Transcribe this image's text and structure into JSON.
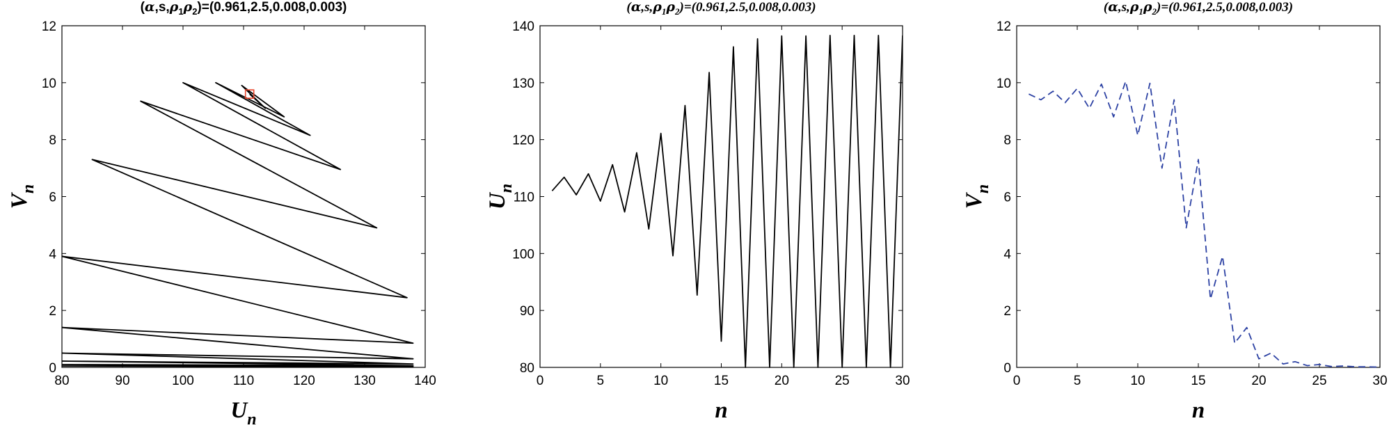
{
  "chart_data": [
    {
      "type": "line",
      "title": "(α,s,ρ1ρ2)=(0.961,2.5,0.008,0.003)",
      "title_parts": {
        "prefix": "(",
        "alpha": "α",
        "mid": ",s,",
        "rho": "ρ",
        "sub1": "1",
        "sub2": "2",
        "suffix": ")=(0.961,2.5,0.008,0.003)"
      },
      "xlabel": "U",
      "xlabel_sub": "n",
      "ylabel": "V",
      "ylabel_sub": "n",
      "xlim": [
        80,
        140
      ],
      "ylim": [
        0,
        12
      ],
      "xticks": [
        "80",
        "90",
        "100",
        "110",
        "120",
        "130",
        "140"
      ],
      "yticks": [
        "0",
        "2",
        "4",
        "6",
        "8",
        "10",
        "12"
      ],
      "grid": false,
      "series": [
        {
          "color": "#000000",
          "style": "solid",
          "points": [
            [
              111,
              9.6
            ],
            [
              113.6,
              9.1
            ],
            [
              109.7,
              9.9
            ],
            [
              116.7,
              8.8
            ],
            [
              105.4,
              10.0
            ],
            [
              121,
              8.15
            ],
            [
              100,
              10.0
            ],
            [
              126,
              6.95
            ],
            [
              93,
              9.35
            ],
            [
              132,
              4.9
            ],
            [
              85,
              7.3
            ],
            [
              137,
              2.45
            ],
            [
              80,
              3.9
            ],
            [
              138,
              0.85
            ],
            [
              80,
              1.4
            ],
            [
              138,
              0.3
            ],
            [
              80,
              0.5
            ],
            [
              138,
              0.12
            ],
            [
              80,
              0.22
            ],
            [
              138,
              0.06
            ],
            [
              80,
              0.1
            ],
            [
              138,
              0.03
            ],
            [
              80,
              0.05
            ],
            [
              138,
              0.01
            ]
          ]
        }
      ],
      "marker": {
        "x": 111,
        "y": 9.6,
        "shape": "square",
        "color": "#e8442a"
      }
    },
    {
      "type": "line",
      "title": "(α,s,ρ1ρ2)=(0.961,2.5,0.008,0.003)",
      "title_parts": {
        "prefix": "(",
        "alpha": "α",
        "mid": ",s,",
        "rho": "ρ",
        "sub1": "1",
        "sub2": "2",
        "suffix": ")=(0.961,2.5,0.008,0.003)"
      },
      "xlabel": "n",
      "xlabel_sub": "",
      "ylabel": "U",
      "ylabel_sub": "n",
      "xlim": [
        0,
        30
      ],
      "ylim": [
        80,
        140
      ],
      "xticks": [
        "0",
        "5",
        "10",
        "15",
        "20",
        "25",
        "30"
      ],
      "yticks": [
        "80",
        "90",
        "100",
        "110",
        "120",
        "130",
        "140"
      ],
      "grid": false,
      "series": [
        {
          "color": "#000000",
          "style": "solid",
          "x": [
            1,
            2,
            3,
            4,
            5,
            6,
            7,
            8,
            9,
            10,
            11,
            12,
            13,
            14,
            15,
            16,
            17,
            18,
            19,
            20,
            21,
            22,
            23,
            24,
            25,
            26,
            27,
            28,
            29,
            30
          ],
          "y": [
            111,
            113.4,
            110.3,
            114,
            109.2,
            115.6,
            107.3,
            117.7,
            104.3,
            121.1,
            99.6,
            126,
            92.7,
            131.8,
            84.6,
            136.3,
            80,
            137.7,
            80,
            138.2,
            80,
            138.2,
            80,
            138.3,
            80,
            138.3,
            80,
            138.3,
            80,
            138.3
          ]
        }
      ]
    },
    {
      "type": "line",
      "title": "(α,s,ρ1ρ2)=(0.961,2.5,0.008,0.003)",
      "title_parts": {
        "prefix": "(",
        "alpha": "α",
        "mid": ",s,",
        "rho": "ρ",
        "sub1": "1",
        "sub2": "2",
        "suffix": ")=(0.961,2.5,0.008,0.003)"
      },
      "xlabel": "n",
      "xlabel_sub": "",
      "ylabel": "V",
      "ylabel_sub": "n",
      "xlim": [
        0,
        30
      ],
      "ylim": [
        0,
        12
      ],
      "xticks": [
        "0",
        "5",
        "10",
        "15",
        "20",
        "25",
        "30"
      ],
      "yticks": [
        "0",
        "2",
        "4",
        "6",
        "8",
        "10",
        "12"
      ],
      "grid": false,
      "series": [
        {
          "color": "#2c41a3",
          "style": "dashed",
          "x": [
            1,
            2,
            3,
            4,
            5,
            6,
            7,
            8,
            9,
            10,
            11,
            12,
            13,
            14,
            15,
            16,
            17,
            18,
            19,
            20,
            21,
            22,
            23,
            24,
            25,
            26,
            27,
            28,
            29,
            30
          ],
          "y": [
            9.6,
            9.4,
            9.7,
            9.3,
            9.8,
            9.1,
            9.95,
            8.8,
            10.05,
            8.15,
            9.98,
            7.0,
            9.4,
            4.9,
            7.3,
            2.4,
            3.9,
            0.85,
            1.4,
            0.3,
            0.5,
            0.12,
            0.2,
            0.06,
            0.1,
            0.03,
            0.05,
            0.02,
            0.02,
            0.01
          ]
        }
      ]
    }
  ]
}
